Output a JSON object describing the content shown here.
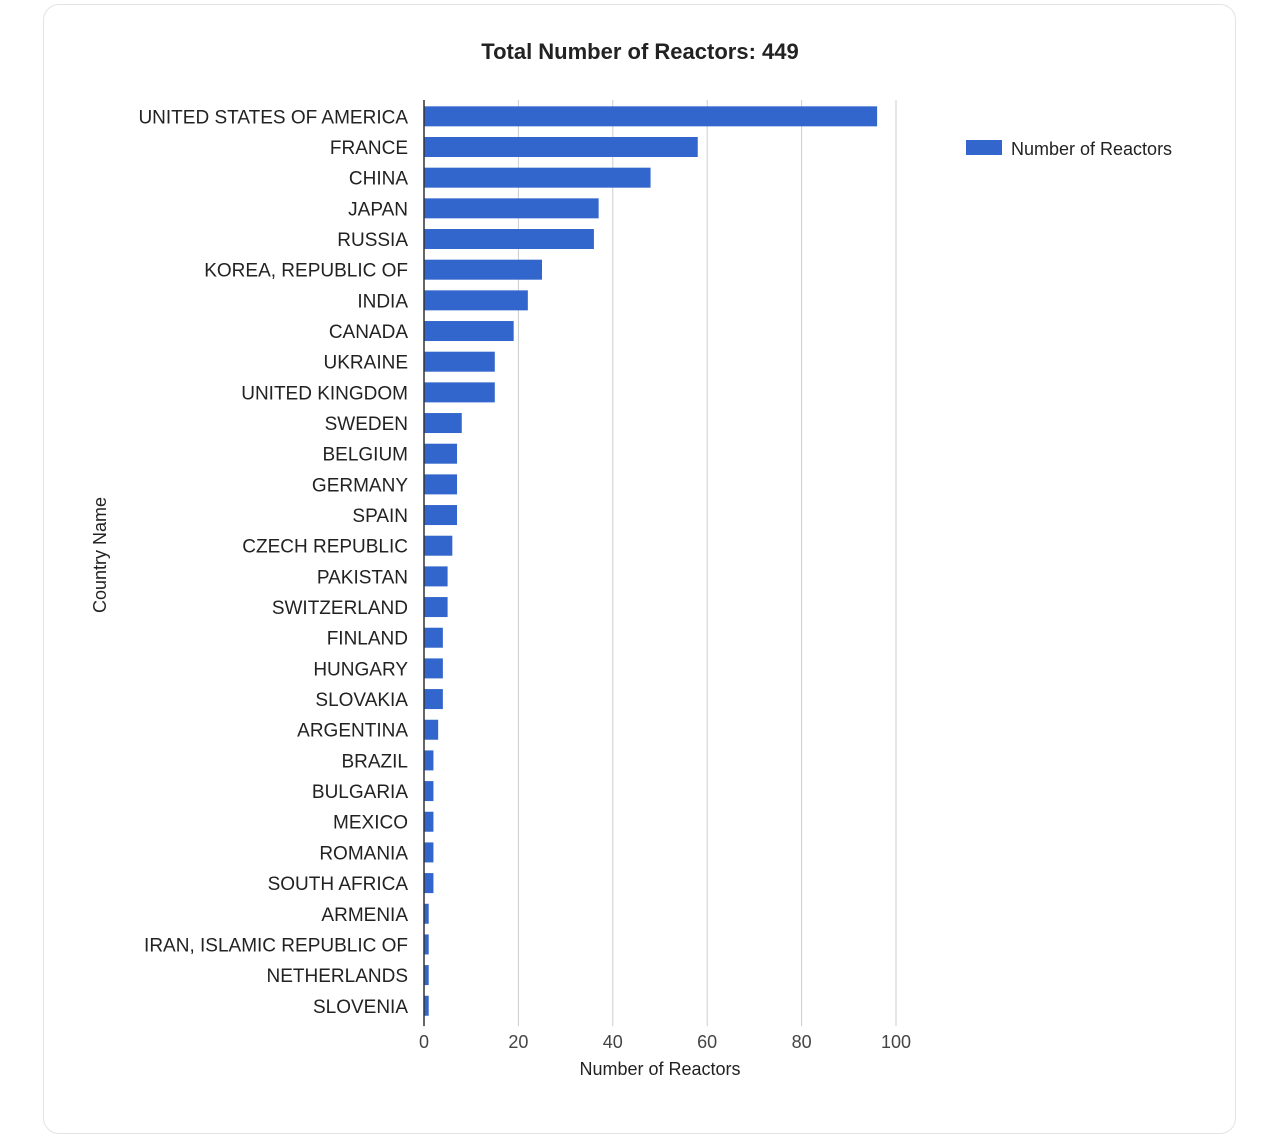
{
  "chart_data": {
    "type": "bar",
    "orientation": "horizontal",
    "title": "Total Number of Reactors: 449",
    "xlabel": "Number of Reactors",
    "ylabel": "Country Name",
    "xlim": [
      0,
      100
    ],
    "xticks": [
      0,
      20,
      40,
      60,
      80,
      100
    ],
    "grid": true,
    "legend_position": "top-right",
    "bar_color": "#3366cc",
    "categories": [
      "UNITED STATES OF AMERICA",
      "FRANCE",
      "CHINA",
      "JAPAN",
      "RUSSIA",
      "KOREA, REPUBLIC OF",
      "INDIA",
      "CANADA",
      "UKRAINE",
      "UNITED KINGDOM",
      "SWEDEN",
      "BELGIUM",
      "GERMANY",
      "SPAIN",
      "CZECH REPUBLIC",
      "PAKISTAN",
      "SWITZERLAND",
      "FINLAND",
      "HUNGARY",
      "SLOVAKIA",
      "ARGENTINA",
      "BRAZIL",
      "BULGARIA",
      "MEXICO",
      "ROMANIA",
      "SOUTH AFRICA",
      "ARMENIA",
      "IRAN, ISLAMIC REPUBLIC OF",
      "NETHERLANDS",
      "SLOVENIA"
    ],
    "series": [
      {
        "name": "Number of Reactors",
        "values": [
          96,
          58,
          48,
          37,
          36,
          25,
          22,
          19,
          15,
          15,
          8,
          7,
          7,
          7,
          6,
          5,
          5,
          4,
          4,
          4,
          3,
          2,
          2,
          2,
          2,
          2,
          1,
          1,
          1,
          1
        ]
      }
    ]
  }
}
